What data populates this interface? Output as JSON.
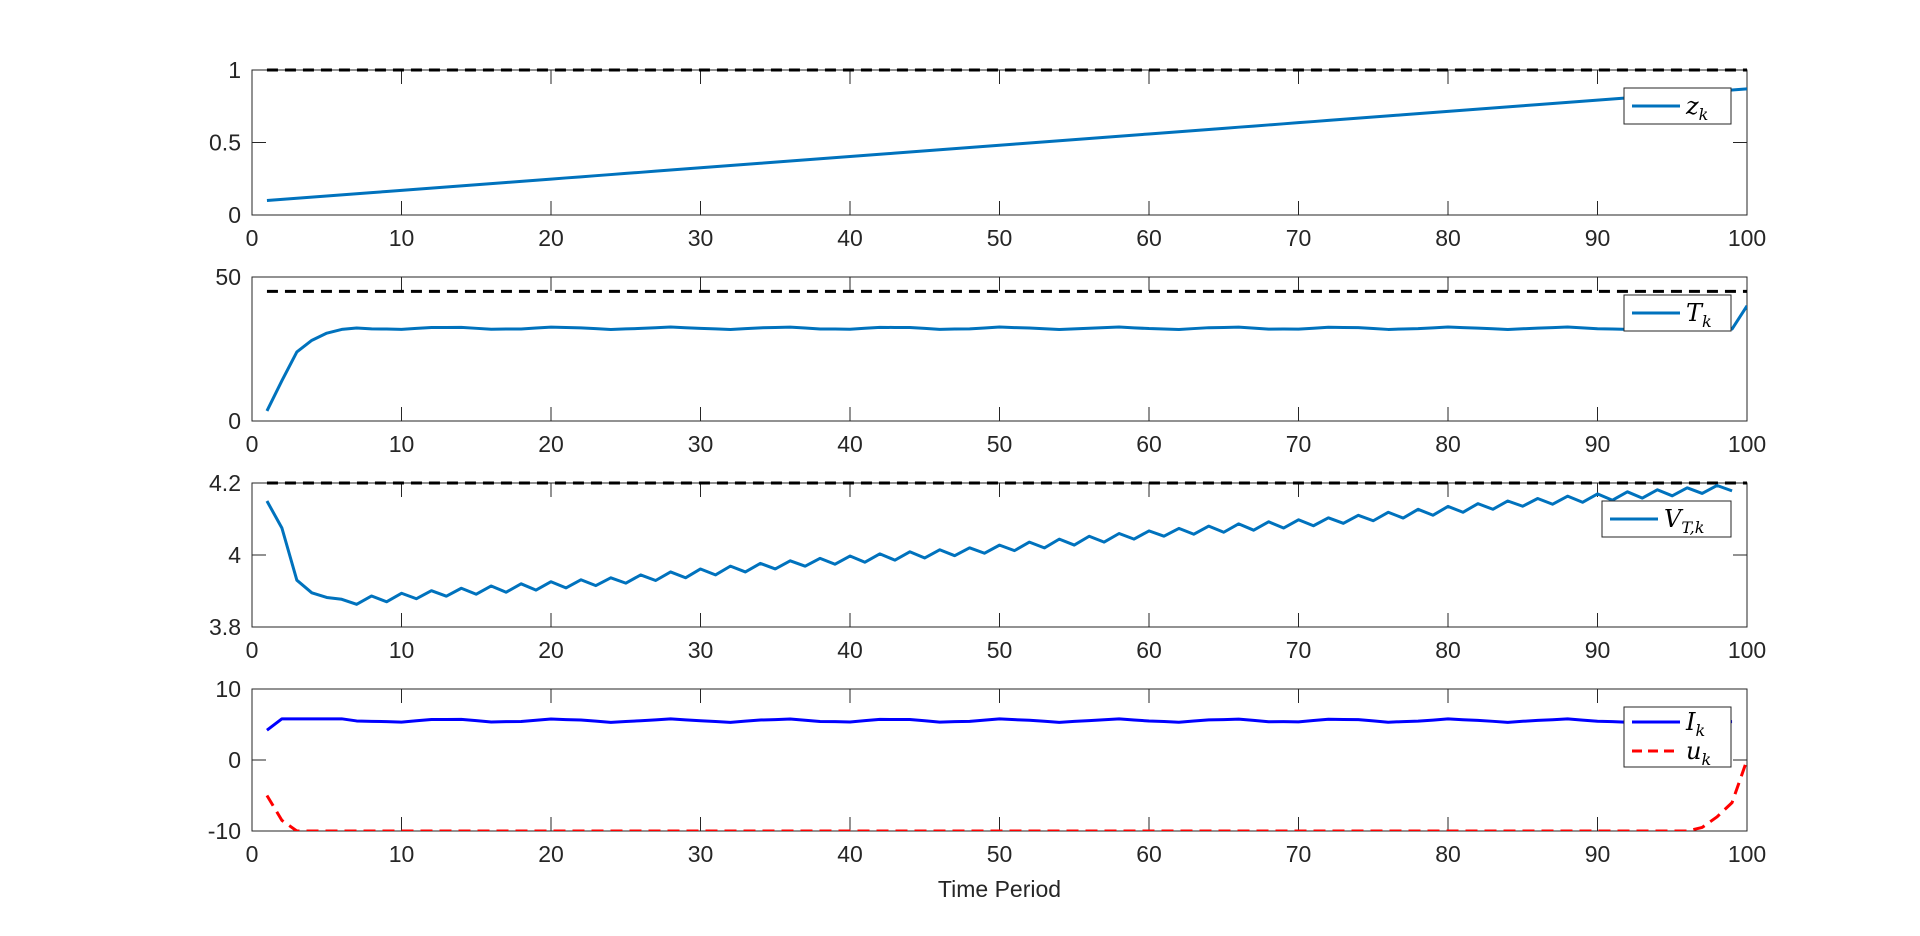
{
  "chart_data": [
    {
      "type": "line",
      "xlim": [
        0,
        100
      ],
      "ylim": [
        0,
        1
      ],
      "xticks": [
        0,
        10,
        20,
        30,
        40,
        50,
        60,
        70,
        80,
        90,
        100
      ],
      "yticks": [
        0,
        0.5,
        1
      ],
      "ytick_labels": [
        "0",
        "0.5",
        "1"
      ],
      "xlabel": "",
      "legend_position": "top-right",
      "reference_line": {
        "y": 1,
        "style": "dashed",
        "color": "#000000"
      },
      "series": [
        {
          "name": "z",
          "sub": "k",
          "color": "#0072BD",
          "style": "solid",
          "generator": "linear",
          "x_start": 1,
          "x_end": 100,
          "y_start": 0.1,
          "y_end": 0.87
        }
      ]
    },
    {
      "type": "line",
      "xlim": [
        0,
        100
      ],
      "ylim": [
        0,
        50
      ],
      "xticks": [
        0,
        10,
        20,
        30,
        40,
        50,
        60,
        70,
        80,
        90,
        100
      ],
      "yticks": [
        0,
        50
      ],
      "ytick_labels": [
        "0",
        "50"
      ],
      "xlabel": "",
      "legend_position": "top-right",
      "reference_line": {
        "y": 45,
        "style": "dashed",
        "color": "#000000"
      },
      "series": [
        {
          "name": "T",
          "sub": "k",
          "color": "#0072BD",
          "style": "solid",
          "x": [
            1,
            2,
            3,
            4,
            5,
            6,
            7
          ],
          "values": [
            3.5,
            14,
            24,
            28,
            30.5,
            31.8,
            32.3
          ],
          "plateau": {
            "x_start": 8,
            "x_end": 99,
            "level": 32.2,
            "amplitude": 0.45
          },
          "tail": {
            "x": [
              100
            ],
            "values": [
              40
            ]
          }
        }
      ]
    },
    {
      "type": "line",
      "xlim": [
        0,
        100
      ],
      "ylim": [
        3.8,
        4.2
      ],
      "xticks": [
        0,
        10,
        20,
        30,
        40,
        50,
        60,
        70,
        80,
        90,
        100
      ],
      "yticks": [
        3.8,
        4,
        4.2
      ],
      "ytick_labels": [
        "3.8",
        "4",
        "4.2"
      ],
      "xlabel": "",
      "legend_position": "top-right",
      "reference_line": {
        "y": 4.2,
        "style": "dashed",
        "color": "#000000"
      },
      "series": [
        {
          "name": "V",
          "sub": "T,k",
          "color": "#0072BD",
          "style": "solid",
          "x": [
            1,
            2,
            3,
            4,
            5,
            6,
            7
          ],
          "values": [
            4.15,
            4.075,
            3.93,
            3.895,
            3.882,
            3.877,
            3.863
          ],
          "trend": {
            "x_start": 8,
            "x_end": 99,
            "y_start": 3.875,
            "y_end": 4.19,
            "amplitude": 0.012
          }
        }
      ]
    },
    {
      "type": "line",
      "xlim": [
        0,
        100
      ],
      "ylim": [
        -10,
        10
      ],
      "xticks": [
        0,
        10,
        20,
        30,
        40,
        50,
        60,
        70,
        80,
        90,
        100
      ],
      "yticks": [
        -10,
        0,
        10
      ],
      "ytick_labels": [
        "-10",
        "0",
        "10"
      ],
      "xlabel": "Time Period",
      "legend_position": "top-right",
      "series": [
        {
          "name": "I",
          "sub": "k",
          "color": "#0000FF",
          "style": "solid",
          "x": [
            1,
            2,
            3,
            4,
            5,
            6,
            7
          ],
          "values": [
            4.2,
            5.8,
            5.8,
            5.8,
            5.8,
            5.8,
            5.5
          ],
          "plateau": {
            "x_start": 8,
            "x_end": 99,
            "level": 5.55,
            "amplitude": 0.25
          }
        },
        {
          "name": "u",
          "sub": "k",
          "color": "#FF0000",
          "style": "dashed",
          "x": [
            1,
            2,
            3,
            95,
            96,
            97,
            98,
            99,
            100
          ],
          "values": [
            -5,
            -8.5,
            -10,
            -10,
            -10,
            -9.5,
            -8,
            -6,
            0
          ]
        }
      ]
    }
  ]
}
